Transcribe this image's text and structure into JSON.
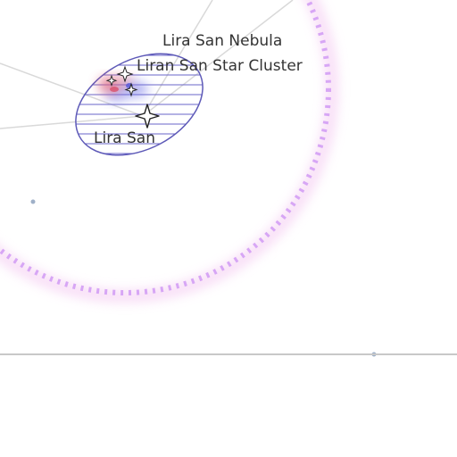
{
  "map": {
    "labels": {
      "nebula": "Lira San Nebula",
      "cluster": "Liran San Star Cluster",
      "system": "Lira San"
    },
    "colors": {
      "background": "#ffffff",
      "route_line": "#d9d9d9",
      "region_border": "#8a8ae6",
      "region_outline": "#5e5ab8",
      "region_hatch": "#6a66c8",
      "nebula_red": "#e0607a",
      "nebula_blue": "#6f72e8",
      "star_marker": "#222222",
      "horizon_line": "#c8c8c8",
      "waypoint_dot": "#9fb0c8"
    },
    "icons": {
      "system_marker": "four-point-star-icon",
      "cluster_marker": "small-star-icon"
    }
  }
}
